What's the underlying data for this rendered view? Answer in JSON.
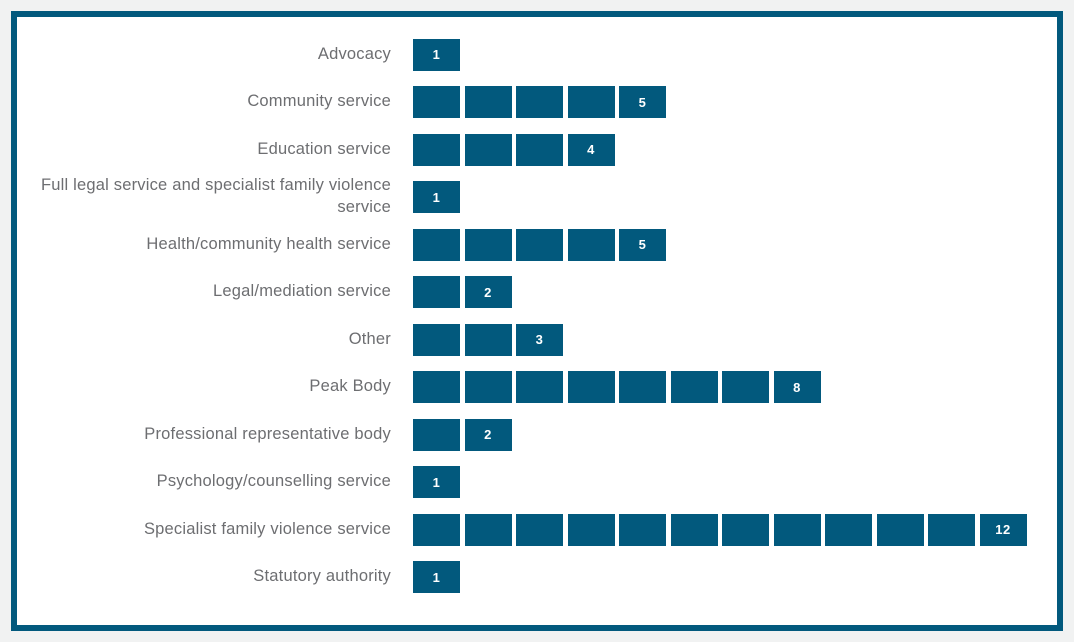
{
  "chart_data": {
    "type": "bar",
    "orientation": "horizontal",
    "style": "unit-segmented",
    "title": "",
    "xlabel": "",
    "ylabel": "",
    "xlim": [
      0,
      12
    ],
    "grid": false,
    "legend": false,
    "categories": [
      "Advocacy",
      "Community service",
      "Education service",
      "Full legal service and specialist family violence service",
      "Health/community health service",
      "Legal/mediation service",
      "Other",
      "Peak Body",
      "Professional representative body",
      "Psychology/counselling service",
      "Specialist family violence service",
      "Statutory authority"
    ],
    "values": [
      1,
      5,
      4,
      1,
      5,
      2,
      3,
      8,
      2,
      1,
      12,
      1
    ],
    "value_labels": [
      "1",
      "5",
      "4",
      "1",
      "5",
      "2",
      "3",
      "8",
      "2",
      "1",
      "12",
      "1"
    ],
    "colors": {
      "bar": "#02597d",
      "panel_border": "#02597d",
      "category_label": "#6d6e71",
      "value_label": "#ffffff",
      "page_background": "#f1f2f2",
      "panel_background": "#ffffff"
    }
  }
}
